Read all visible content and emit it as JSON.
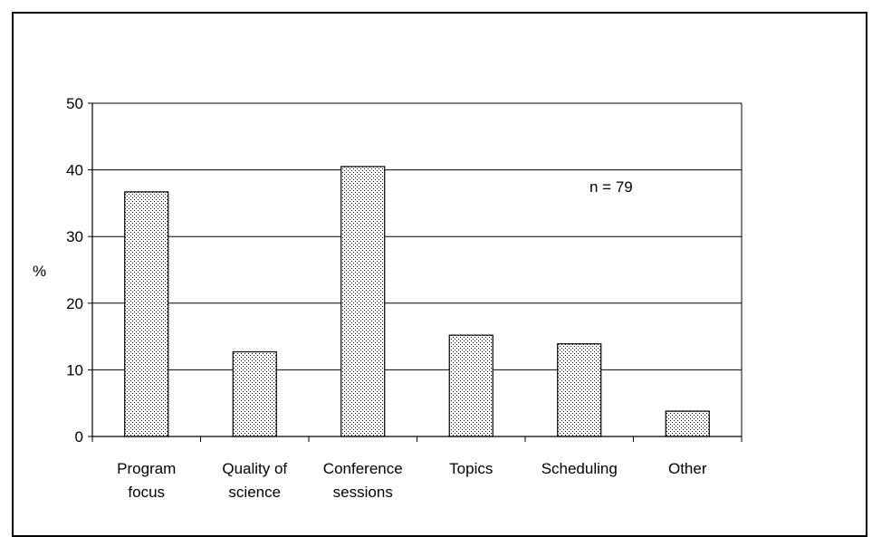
{
  "chart_data": {
    "type": "bar",
    "categories": [
      [
        "Program",
        "focus"
      ],
      [
        "Quality of",
        "science"
      ],
      [
        "Conference",
        "sessions"
      ],
      [
        "Topics"
      ],
      [
        "Scheduling"
      ],
      [
        "Other"
      ]
    ],
    "values": [
      36.7,
      12.7,
      40.5,
      15.2,
      13.9,
      3.8
    ],
    "ylabel": "%",
    "ylim": [
      0,
      50
    ],
    "yticks": [
      0,
      10,
      20,
      30,
      40,
      50
    ],
    "grid": true,
    "annotation": "n = 79",
    "bar_fill": "dotted-pattern",
    "colors": {
      "bar_fill": "#ffffff",
      "bar_dots": "#000000",
      "gridline": "#000000"
    }
  }
}
